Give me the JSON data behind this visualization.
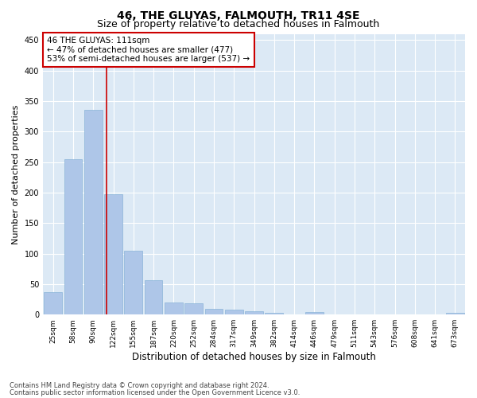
{
  "title": "46, THE GLUYAS, FALMOUTH, TR11 4SE",
  "subtitle": "Size of property relative to detached houses in Falmouth",
  "xlabel": "Distribution of detached houses by size in Falmouth",
  "ylabel": "Number of detached properties",
  "bar_labels": [
    "25sqm",
    "58sqm",
    "90sqm",
    "122sqm",
    "155sqm",
    "187sqm",
    "220sqm",
    "252sqm",
    "284sqm",
    "317sqm",
    "349sqm",
    "382sqm",
    "414sqm",
    "446sqm",
    "479sqm",
    "511sqm",
    "543sqm",
    "576sqm",
    "608sqm",
    "641sqm",
    "673sqm"
  ],
  "bar_values": [
    37,
    255,
    336,
    197,
    104,
    57,
    20,
    19,
    10,
    8,
    5,
    3,
    0,
    4,
    0,
    0,
    0,
    0,
    0,
    0,
    3
  ],
  "bar_color": "#aec6e8",
  "bar_edge_color": "#8ab4d8",
  "annotation_line_color": "#cc0000",
  "annotation_box_line1": "46 THE GLUYAS: 111sqm",
  "annotation_box_line2": "← 47% of detached houses are smaller (477)",
  "annotation_box_line3": "53% of semi-detached houses are larger (537) →",
  "ylim": [
    0,
    460
  ],
  "yticks": [
    0,
    50,
    100,
    150,
    200,
    250,
    300,
    350,
    400,
    450
  ],
  "footer_line1": "Contains HM Land Registry data © Crown copyright and database right 2024.",
  "footer_line2": "Contains public sector information licensed under the Open Government Licence v3.0.",
  "plot_bg_color": "#dce9f5",
  "title_fontsize": 10,
  "subtitle_fontsize": 9,
  "tick_fontsize": 6.5,
  "ylabel_fontsize": 8,
  "xlabel_fontsize": 8.5,
  "annotation_fontsize": 7.5,
  "footer_fontsize": 6
}
